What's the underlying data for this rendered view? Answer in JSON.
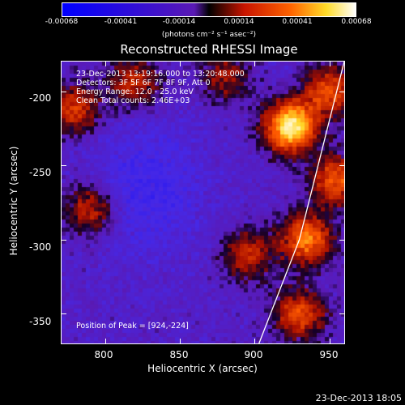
{
  "colorbar": {
    "ticks": [
      "-0.00068",
      "-0.00041",
      "-0.00014",
      "0.00014",
      "0.00041",
      "0.00068"
    ],
    "unit_label": "(photons cm⁻² s⁻¹ asec⁻²)",
    "range": [
      -0.00068,
      0.00068
    ]
  },
  "title": "Reconstructed RHESSI Image",
  "info": {
    "time": "23-Dec-2013 13:19:16.000 to 13:20:48.000",
    "detectors": "Detectors: 3F 5F 6F 7F 8F 9F, Att 0",
    "energy": "Energy Range: 12.0 - 25.0 keV",
    "clean": "Clean    Total counts: 2.46E+03",
    "peak": "Position of Peak = [924,-224]"
  },
  "axes": {
    "xlabel": "Heliocentric X (arcsec)",
    "ylabel": "Heliocentric Y (arcsec)",
    "xticks": [
      "800",
      "850",
      "900",
      "950"
    ],
    "yticks": [
      "-200",
      "-250",
      "-300",
      "-350"
    ]
  },
  "timestamp": "23-Dec-2013 18:05",
  "chart_data": {
    "type": "heatmap",
    "title": "Reconstructed RHESSI Image",
    "xlabel": "Heliocentric X (arcsec)",
    "ylabel": "Heliocentric Y (arcsec)",
    "xlim": [
      771,
      960
    ],
    "ylim": [
      -370,
      -180
    ],
    "value_range": [
      -0.00068,
      0.00068
    ],
    "peak": [
      924,
      -224
    ],
    "bright_sources": [
      {
        "x": 924,
        "y": -224,
        "level": 1.0
      },
      {
        "x": 950,
        "y": -200,
        "level": 0.55
      },
      {
        "x": 955,
        "y": -260,
        "level": 0.6
      },
      {
        "x": 935,
        "y": -300,
        "level": 0.7
      },
      {
        "x": 780,
        "y": -212,
        "level": 0.5
      },
      {
        "x": 790,
        "y": -280,
        "level": 0.45
      },
      {
        "x": 820,
        "y": -195,
        "level": 0.45
      },
      {
        "x": 930,
        "y": -350,
        "level": 0.55
      },
      {
        "x": 895,
        "y": -310,
        "level": 0.45
      },
      {
        "x": 880,
        "y": -190,
        "level": 0.35
      }
    ],
    "limb_curve": [
      [
        960,
        -180
      ],
      [
        945,
        -240
      ],
      [
        930,
        -300
      ],
      [
        903,
        -370
      ]
    ]
  }
}
